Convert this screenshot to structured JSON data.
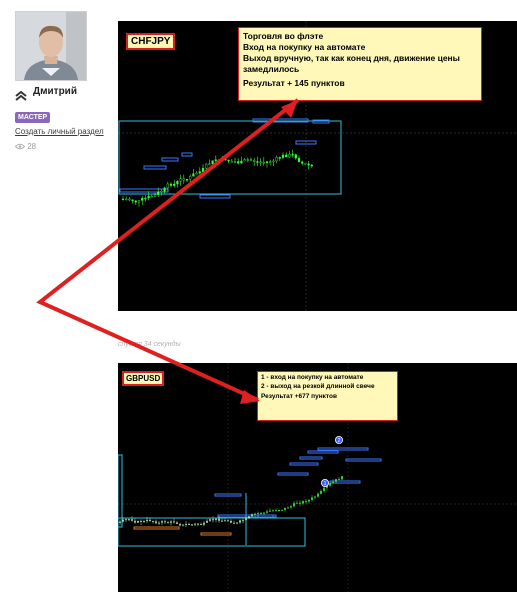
{
  "profile": {
    "username": "Дмитрий",
    "badge": "МАСТЕР",
    "create_section_link": "Создать личный раздел",
    "views_count": "28"
  },
  "post": {
    "timestamp": "спустя 34 секунды"
  },
  "chart_top": {
    "symbol": "CHFJPY",
    "note_lines": [
      "Торговля во флэте",
      "Вход на покупку на автомате",
      "Выход вручную, так как конец дня,  движение цены замедлилось"
    ],
    "result": "Результат + 145 пунктов"
  },
  "chart_bottom": {
    "symbol": "GBPUSD",
    "note_lines": [
      "1 - вход на покупку на автомате",
      "2 - выход на резкой длинной свече"
    ],
    "result": "Результат +677 пунктов",
    "markers": [
      "1",
      "2"
    ]
  },
  "colors": {
    "chart_bg": "#000000",
    "candle_green": "#39ff39",
    "level_blue": "#3c78ff",
    "box_cyan": "#2ec0e0",
    "level_orange": "#d77a2a",
    "arrow_red": "#e02020",
    "badge_purple": "#8a67b8",
    "note_bg": "#fff8b8"
  },
  "icons": [
    "rank-chevrons-icon",
    "eye-icon",
    "red-arrow-icon"
  ]
}
